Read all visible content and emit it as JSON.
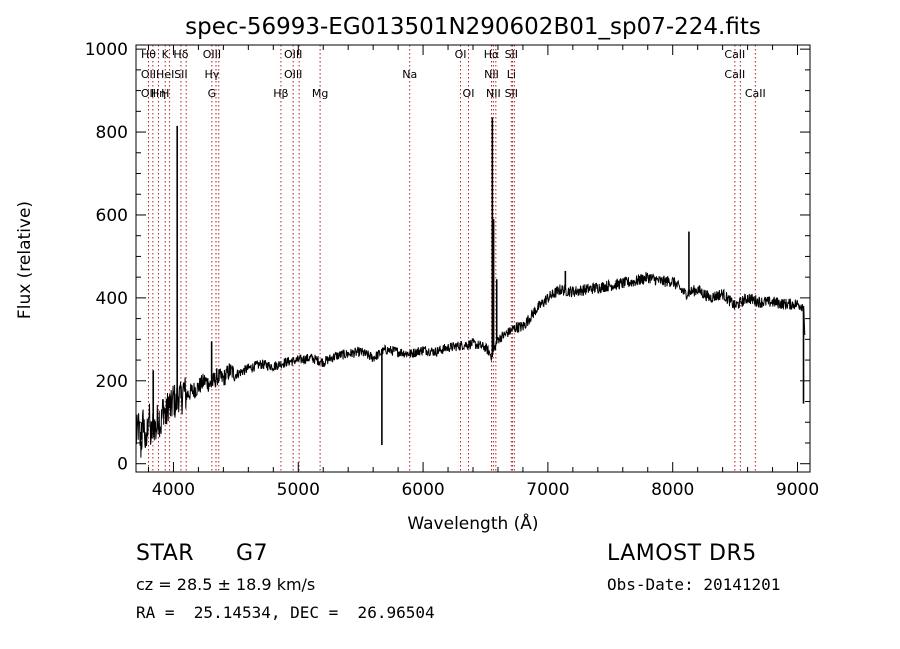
{
  "chart_data": {
    "type": "line",
    "title": "spec-56993-EG013501N290602B01_sp07-224.fits",
    "xlabel": "Wavelength (Å)",
    "ylabel": "Flux (relative)",
    "xlim": [
      3700,
      9100
    ],
    "ylim": [
      -20,
      1010
    ],
    "x_ticks": [
      4000,
      5000,
      6000,
      7000,
      8000,
      9000
    ],
    "y_ticks": [
      0,
      200,
      400,
      600,
      800,
      1000
    ],
    "grid": false,
    "series": [
      {
        "x": [
          3700,
          3720,
          3740,
          3760,
          3780,
          3800,
          3820,
          3840,
          3860,
          3880,
          3900,
          3920,
          3940,
          3960,
          3980,
          4000,
          4020,
          4040,
          4060,
          4080,
          4100,
          4150,
          4200,
          4250,
          4300,
          4350,
          4400,
          4450,
          4500,
          4600,
          4700,
          4800,
          4900,
          5000,
          5100,
          5200,
          5300,
          5400,
          5500,
          5600,
          5700,
          5800,
          5900,
          6000,
          6100,
          6200,
          6300,
          6400,
          6500,
          6550,
          6600,
          6650,
          6700,
          6750,
          6800,
          6900,
          7000,
          7100,
          7200,
          7300,
          7400,
          7500,
          7600,
          7700,
          7800,
          7900,
          8000,
          8100,
          8200,
          8300,
          8400,
          8500,
          8600,
          8700,
          8800,
          8900,
          9000,
          9050,
          9060
        ],
        "y": [
          60,
          90,
          40,
          110,
          30,
          130,
          60,
          100,
          80,
          120,
          95,
          140,
          110,
          150,
          130,
          160,
          140,
          170,
          150,
          180,
          165,
          175,
          185,
          200,
          190,
          210,
          205,
          225,
          215,
          230,
          240,
          235,
          245,
          250,
          255,
          245,
          260,
          265,
          270,
          255,
          275,
          270,
          265,
          275,
          270,
          280,
          285,
          290,
          280,
          260,
          300,
          310,
          320,
          330,
          330,
          370,
          400,
          420,
          415,
          420,
          425,
          430,
          435,
          440,
          450,
          440,
          440,
          410,
          420,
          400,
          410,
          380,
          400,
          390,
          390,
          385,
          385,
          380,
          300
        ]
      }
    ],
    "spikes": [
      {
        "x": 3745,
        "y": 100
      },
      {
        "x": 3838,
        "y": 225
      },
      {
        "x": 4030,
        "y": 815
      },
      {
        "x": 4306,
        "y": 295
      },
      {
        "x": 5670,
        "y": 45
      },
      {
        "x": 6555,
        "y": 835
      },
      {
        "x": 6565,
        "y": 590
      },
      {
        "x": 6590,
        "y": 445
      },
      {
        "x": 7140,
        "y": 465
      },
      {
        "x": 8130,
        "y": 560
      },
      {
        "x": 9048,
        "y": 145
      }
    ],
    "line_marks": [
      {
        "x": 3800,
        "labels": [
          "Hθ",
          "OII",
          "OII"
        ]
      },
      {
        "x": 3835,
        "labels": [
          "",
          "",
          ""
        ]
      },
      {
        "x": 3880,
        "labels": [
          "",
          "",
          "Hη"
        ]
      },
      {
        "x": 3934,
        "labels": [
          "K",
          "HeI",
          "H"
        ]
      },
      {
        "x": 3969,
        "labels": [
          "",
          "",
          ""
        ]
      },
      {
        "x": 4060,
        "labels": [
          "Hδ",
          "SII",
          ""
        ]
      },
      {
        "x": 4102,
        "labels": [
          "",
          "",
          ""
        ]
      },
      {
        "x": 4308,
        "labels": [
          "OIII",
          "Hγ",
          "G"
        ]
      },
      {
        "x": 4341,
        "labels": [
          "",
          "",
          ""
        ]
      },
      {
        "x": 4363,
        "labels": [
          "",
          "",
          ""
        ]
      },
      {
        "x": 4861,
        "labels": [
          "",
          "",
          "Hβ"
        ]
      },
      {
        "x": 4959,
        "labels": [
          "OIII",
          "OIII",
          ""
        ]
      },
      {
        "x": 5007,
        "labels": [
          "",
          "",
          ""
        ]
      },
      {
        "x": 5175,
        "labels": [
          "",
          "",
          "Mg"
        ]
      },
      {
        "x": 5893,
        "labels": [
          "",
          "Na",
          ""
        ]
      },
      {
        "x": 6300,
        "labels": [
          "OI",
          "",
          ""
        ]
      },
      {
        "x": 6364,
        "labels": [
          "",
          "",
          "OI"
        ]
      },
      {
        "x": 6548,
        "labels": [
          "Hα",
          "NII",
          ""
        ]
      },
      {
        "x": 6563,
        "labels": [
          "",
          "",
          "NII"
        ]
      },
      {
        "x": 6583,
        "labels": [
          "",
          "",
          ""
        ]
      },
      {
        "x": 6707,
        "labels": [
          "SII",
          "Li",
          "SII"
        ]
      },
      {
        "x": 6716,
        "labels": [
          "",
          "",
          ""
        ]
      },
      {
        "x": 6731,
        "labels": [
          "",
          "",
          ""
        ]
      },
      {
        "x": 8498,
        "labels": [
          "CaII",
          "CaII",
          ""
        ]
      },
      {
        "x": 8542,
        "labels": [
          "",
          "",
          ""
        ]
      },
      {
        "x": 8662,
        "labels": [
          "",
          "",
          "CaII"
        ]
      }
    ]
  },
  "info": {
    "class": "STAR",
    "subclass": "G7",
    "survey": "LAMOST DR5",
    "cz": "cz = 28.5 ± 18.9 km/s",
    "obs_date": "Obs-Date: 20141201",
    "radec": "RA =  25.14534, DEC =  26.96504"
  },
  "colors": {
    "spectrum": "#000000",
    "line_marker": "#b22222",
    "axes": "#000000"
  }
}
